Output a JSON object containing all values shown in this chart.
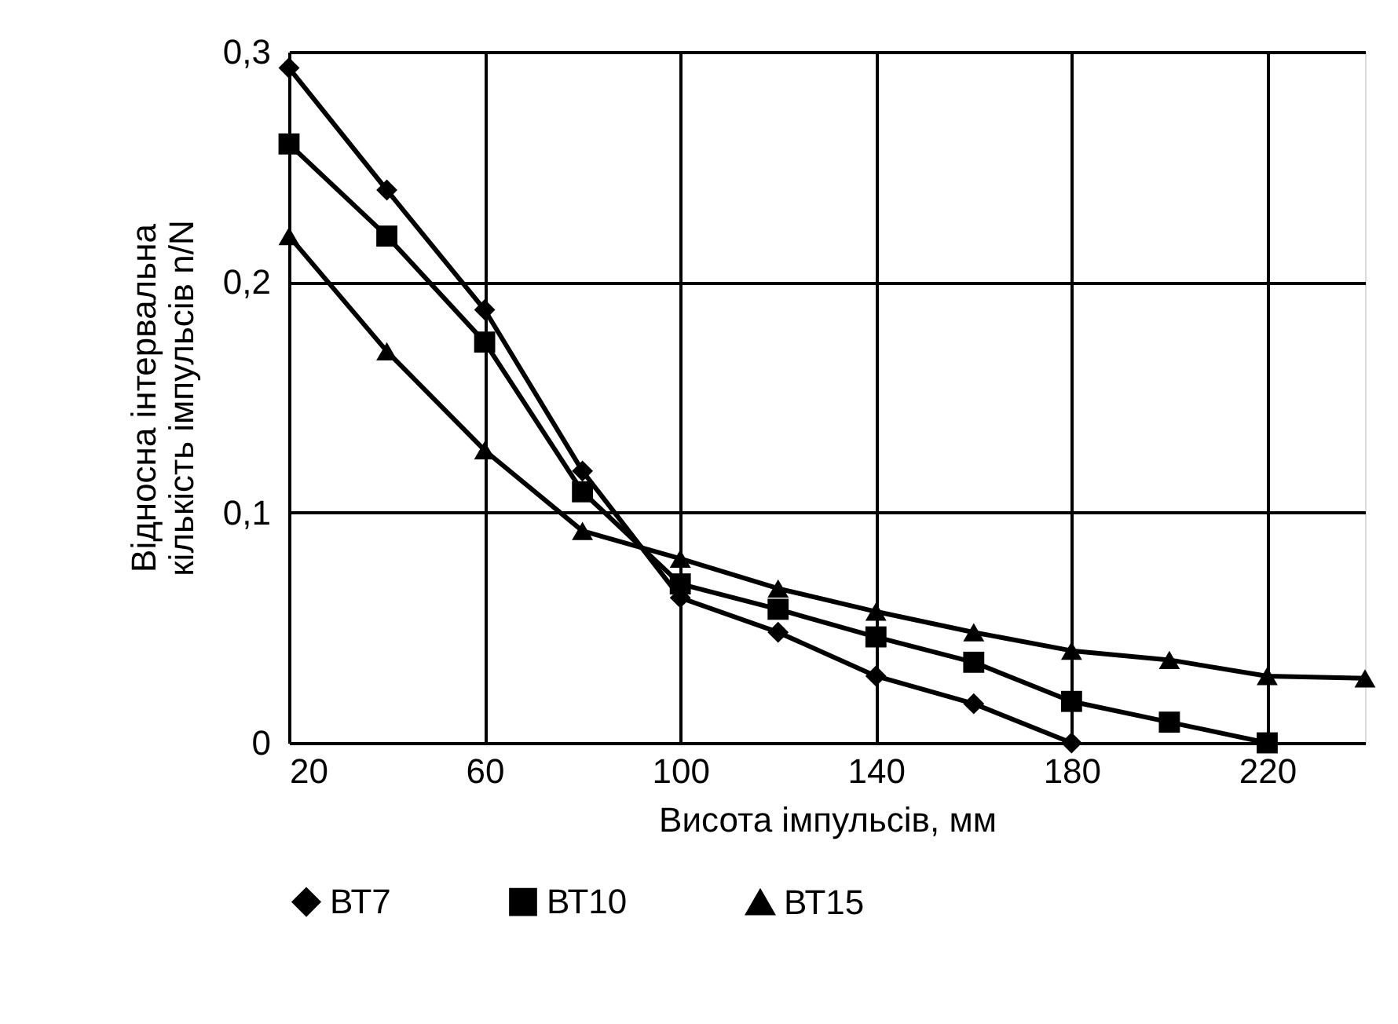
{
  "chart_data": {
    "type": "line",
    "xlabel": "Висота імпульсів, мм",
    "ylabel": "Відносна інтервальна\nкількість імпульсів n/N",
    "x": [
      20,
      40,
      60,
      80,
      100,
      120,
      140,
      160,
      180,
      200,
      220,
      240
    ],
    "series": [
      {
        "name": "ВТ7",
        "color": "#000000",
        "marker": "diamond",
        "values": [
          0.293,
          0.24,
          0.188,
          0.118,
          0.063,
          0.048,
          0.029,
          0.017,
          0,
          null,
          null,
          null
        ]
      },
      {
        "name": "ВТ10",
        "color": "#000000",
        "marker": "square",
        "values": [
          0.26,
          0.22,
          0.174,
          0.109,
          0.069,
          0.058,
          0.046,
          0.035,
          0.018,
          0.009,
          0,
          null
        ]
      },
      {
        "name": "ВТ15",
        "color": "#000000",
        "marker": "triangle",
        "values": [
          0.22,
          0.17,
          0.127,
          0.092,
          0.08,
          0.067,
          0.057,
          0.048,
          0.04,
          0.036,
          0.029,
          0.028
        ]
      }
    ],
    "xlim": [
      20,
      240
    ],
    "xticks": [
      20,
      60,
      100,
      140,
      180,
      220
    ],
    "ylim": [
      0,
      0.3
    ],
    "yticks": [
      0,
      {
        "value": 0.1,
        "label": "0,1"
      },
      {
        "value": 0.2,
        "label": "0,2"
      },
      {
        "value": 0.3,
        "label": "0,3"
      }
    ],
    "grid": true,
    "legend": "bottom",
    "line_style": "solid"
  }
}
